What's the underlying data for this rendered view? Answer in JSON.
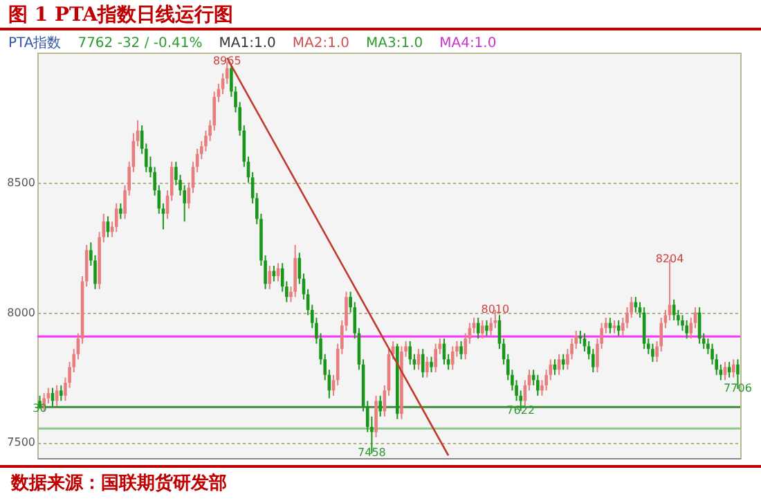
{
  "chart_data": {
    "type": "candlestick",
    "title": "图 1  PTA指数日线运行图",
    "annotations": [
      "PTA指数",
      "7762  -32 / -0.41%",
      "MA1:1.0",
      "MA2:1.0",
      "MA3:1.0",
      "MA4:1.0",
      "数据来源：国联期货研发部",
      {
        "text": "8965",
        "y": 8965
      },
      {
        "text": "7458",
        "y": 7458
      },
      {
        "text": "8010",
        "y": 8010
      },
      {
        "text": "7622",
        "y": 7622
      },
      {
        "text": "8204",
        "y": 8204
      },
      {
        "text": "7706",
        "y": 7706
      },
      {
        "text": "30",
        "y": 7630
      }
    ],
    "categories": [
      null,
      null,
      null,
      null,
      null,
      null,
      null,
      null,
      null,
      null,
      null,
      null,
      null,
      null,
      null,
      null,
      null,
      null,
      null,
      null,
      null,
      null,
      null,
      null,
      null,
      null,
      null,
      null,
      null,
      null,
      null,
      null,
      null,
      null,
      null,
      null,
      null,
      null,
      null,
      null,
      null,
      null,
      null,
      null,
      null,
      null,
      null,
      null,
      null,
      null,
      null,
      null,
      null,
      null,
      null,
      null,
      null,
      null,
      null,
      null,
      null,
      null,
      null,
      null,
      null,
      null,
      null,
      null,
      null,
      null,
      null,
      null,
      null,
      null,
      null,
      null,
      null,
      null,
      null,
      null,
      null,
      null,
      null,
      null,
      null,
      null,
      null,
      null,
      null,
      null,
      null,
      null,
      null,
      null,
      null,
      null,
      null,
      null,
      null,
      null,
      null,
      null,
      null,
      null,
      null,
      null,
      null,
      null,
      null,
      null,
      null,
      null,
      null,
      null,
      null,
      null,
      null,
      null,
      null,
      null,
      null,
      null,
      null,
      null,
      null,
      null,
      null,
      null,
      null,
      null,
      null,
      null,
      null,
      null,
      null,
      null,
      null,
      null,
      null,
      null,
      null,
      null,
      null,
      null,
      null,
      null,
      null,
      null,
      null,
      null,
      null,
      null,
      null,
      null,
      null,
      null,
      null,
      null,
      null,
      null,
      null,
      null,
      null,
      null,
      null
    ],
    "ohlc": [
      [
        7660,
        7680,
        7630,
        7640
      ],
      [
        7640,
        7690,
        7620,
        7670
      ],
      [
        7670,
        7710,
        7650,
        7690
      ],
      [
        7690,
        7710,
        7640,
        7660
      ],
      [
        7660,
        7720,
        7640,
        7700
      ],
      [
        7700,
        7720,
        7660,
        7680
      ],
      [
        7680,
        7750,
        7660,
        7730
      ],
      [
        7730,
        7810,
        7710,
        7790
      ],
      [
        7790,
        7860,
        7770,
        7840
      ],
      [
        7840,
        7920,
        7820,
        7900
      ],
      [
        7900,
        8140,
        7880,
        8120
      ],
      [
        8120,
        8260,
        8100,
        8240
      ],
      [
        8240,
        8270,
        8180,
        8200
      ],
      [
        8200,
        8220,
        8090,
        8110
      ],
      [
        8110,
        8310,
        8090,
        8290
      ],
      [
        8290,
        8380,
        8270,
        8350
      ],
      [
        8350,
        8370,
        8290,
        8310
      ],
      [
        8310,
        8350,
        8290,
        8330
      ],
      [
        8330,
        8420,
        8310,
        8400
      ],
      [
        8400,
        8420,
        8360,
        8380
      ],
      [
        8380,
        8490,
        8360,
        8470
      ],
      [
        8470,
        8580,
        8450,
        8560
      ],
      [
        8560,
        8690,
        8540,
        8660
      ],
      [
        8660,
        8740,
        8640,
        8700
      ],
      [
        8700,
        8720,
        8610,
        8630
      ],
      [
        8630,
        8650,
        8540,
        8560
      ],
      [
        8560,
        8600,
        8520,
        8540
      ],
      [
        8540,
        8560,
        8450,
        8470
      ],
      [
        8470,
        8490,
        8380,
        8400
      ],
      [
        8400,
        8420,
        8320,
        8380
      ],
      [
        8380,
        8470,
        8360,
        8450
      ],
      [
        8450,
        8580,
        8430,
        8560
      ],
      [
        8560,
        8580,
        8490,
        8510
      ],
      [
        8510,
        8530,
        8450,
        8470
      ],
      [
        8470,
        8490,
        8350,
        8420
      ],
      [
        8420,
        8500,
        8400,
        8480
      ],
      [
        8480,
        8580,
        8460,
        8560
      ],
      [
        8560,
        8630,
        8540,
        8610
      ],
      [
        8610,
        8660,
        8590,
        8640
      ],
      [
        8640,
        8700,
        8620,
        8680
      ],
      [
        8680,
        8740,
        8660,
        8720
      ],
      [
        8720,
        8850,
        8700,
        8830
      ],
      [
        8830,
        8880,
        8810,
        8860
      ],
      [
        8860,
        8920,
        8840,
        8900
      ],
      [
        8900,
        8965,
        8880,
        8940
      ],
      [
        8940,
        8950,
        8830,
        8850
      ],
      [
        8850,
        8870,
        8770,
        8790
      ],
      [
        8790,
        8810,
        8680,
        8700
      ],
      [
        8700,
        8720,
        8560,
        8580
      ],
      [
        8580,
        8600,
        8500,
        8520
      ],
      [
        8520,
        8540,
        8420,
        8440
      ],
      [
        8440,
        8460,
        8340,
        8360
      ],
      [
        8360,
        8380,
        8180,
        8200
      ],
      [
        8200,
        8220,
        8090,
        8110
      ],
      [
        8110,
        8180,
        8090,
        8160
      ],
      [
        8160,
        8180,
        8120,
        8140
      ],
      [
        8140,
        8190,
        8120,
        8170
      ],
      [
        8170,
        8190,
        8080,
        8100
      ],
      [
        8100,
        8120,
        8040,
        8060
      ],
      [
        8060,
        8100,
        8040,
        8080
      ],
      [
        8080,
        8260,
        8060,
        8210
      ],
      [
        8210,
        8230,
        8110,
        8130
      ],
      [
        8130,
        8150,
        8050,
        8070
      ],
      [
        8070,
        8090,
        7990,
        8010
      ],
      [
        8010,
        8030,
        7940,
        7960
      ],
      [
        7960,
        7980,
        7880,
        7900
      ],
      [
        7900,
        7920,
        7800,
        7820
      ],
      [
        7820,
        7840,
        7740,
        7760
      ],
      [
        7760,
        7780,
        7670,
        7700
      ],
      [
        7700,
        7760,
        7680,
        7740
      ],
      [
        7740,
        7880,
        7720,
        7860
      ],
      [
        7860,
        7970,
        7840,
        7950
      ],
      [
        7950,
        8080,
        7930,
        8060
      ],
      [
        8060,
        8080,
        8000,
        8020
      ],
      [
        8020,
        8040,
        7900,
        7920
      ],
      [
        7920,
        7940,
        7780,
        7800
      ],
      [
        7800,
        7820,
        7620,
        7640
      ],
      [
        7640,
        7660,
        7540,
        7560
      ],
      [
        7560,
        7600,
        7458,
        7540
      ],
      [
        7540,
        7680,
        7520,
        7660
      ],
      [
        7660,
        7680,
        7600,
        7620
      ],
      [
        7620,
        7720,
        7600,
        7700
      ],
      [
        7700,
        7860,
        7680,
        7840
      ],
      [
        7840,
        7890,
        7820,
        7870
      ],
      [
        7870,
        7880,
        7590,
        7610
      ],
      [
        7610,
        7870,
        7590,
        7850
      ],
      [
        7850,
        7890,
        7830,
        7870
      ],
      [
        7870,
        7890,
        7800,
        7820
      ],
      [
        7820,
        7840,
        7780,
        7800
      ],
      [
        7800,
        7860,
        7780,
        7840
      ],
      [
        7840,
        7860,
        7750,
        7770
      ],
      [
        7770,
        7830,
        7750,
        7810
      ],
      [
        7810,
        7830,
        7770,
        7790
      ],
      [
        7790,
        7880,
        7770,
        7860
      ],
      [
        7860,
        7900,
        7840,
        7880
      ],
      [
        7880,
        7900,
        7800,
        7820
      ],
      [
        7820,
        7840,
        7780,
        7800
      ],
      [
        7800,
        7870,
        7780,
        7850
      ],
      [
        7850,
        7890,
        7830,
        7870
      ],
      [
        7870,
        7890,
        7820,
        7840
      ],
      [
        7840,
        7920,
        7820,
        7900
      ],
      [
        7900,
        7960,
        7880,
        7940
      ],
      [
        7940,
        7980,
        7920,
        7960
      ],
      [
        7960,
        7980,
        7900,
        7920
      ],
      [
        7920,
        7970,
        7900,
        7950
      ],
      [
        7950,
        7970,
        7910,
        7930
      ],
      [
        7930,
        7980,
        7910,
        7960
      ],
      [
        7960,
        8010,
        7940,
        7970
      ],
      [
        7970,
        7990,
        7860,
        7880
      ],
      [
        7880,
        7900,
        7800,
        7820
      ],
      [
        7820,
        7840,
        7740,
        7760
      ],
      [
        7760,
        7780,
        7700,
        7720
      ],
      [
        7720,
        7740,
        7660,
        7680
      ],
      [
        7680,
        7700,
        7622,
        7660
      ],
      [
        7660,
        7740,
        7640,
        7720
      ],
      [
        7720,
        7780,
        7700,
        7760
      ],
      [
        7760,
        7780,
        7720,
        7740
      ],
      [
        7740,
        7760,
        7680,
        7700
      ],
      [
        7700,
        7740,
        7680,
        7720
      ],
      [
        7720,
        7780,
        7700,
        7760
      ],
      [
        7760,
        7820,
        7740,
        7800
      ],
      [
        7800,
        7820,
        7760,
        7780
      ],
      [
        7780,
        7840,
        7760,
        7820
      ],
      [
        7820,
        7840,
        7780,
        7800
      ],
      [
        7800,
        7860,
        7780,
        7840
      ],
      [
        7840,
        7900,
        7820,
        7880
      ],
      [
        7880,
        7930,
        7860,
        7910
      ],
      [
        7910,
        7930,
        7880,
        7900
      ],
      [
        7900,
        7920,
        7850,
        7870
      ],
      [
        7870,
        7890,
        7820,
        7840
      ],
      [
        7840,
        7860,
        7770,
        7790
      ],
      [
        7790,
        7900,
        7770,
        7880
      ],
      [
        7880,
        7960,
        7860,
        7940
      ],
      [
        7940,
        7980,
        7920,
        7960
      ],
      [
        7960,
        7980,
        7920,
        7940
      ],
      [
        7940,
        7970,
        7920,
        7950
      ],
      [
        7950,
        7970,
        7910,
        7930
      ],
      [
        7930,
        7980,
        7910,
        7960
      ],
      [
        7960,
        8020,
        7940,
        8000
      ],
      [
        8000,
        8060,
        7980,
        8040
      ],
      [
        8040,
        8060,
        8000,
        8020
      ],
      [
        8020,
        8040,
        7980,
        8000
      ],
      [
        8000,
        8020,
        7860,
        7880
      ],
      [
        7880,
        7900,
        7840,
        7860
      ],
      [
        7860,
        7880,
        7810,
        7830
      ],
      [
        7830,
        7890,
        7810,
        7870
      ],
      [
        7870,
        7980,
        7850,
        7960
      ],
      [
        7960,
        8010,
        7940,
        7990
      ],
      [
        7990,
        8204,
        7970,
        8030
      ],
      [
        8030,
        8050,
        7970,
        7990
      ],
      [
        7990,
        8010,
        7950,
        7970
      ],
      [
        7970,
        7990,
        7930,
        7950
      ],
      [
        7950,
        7970,
        7900,
        7920
      ],
      [
        7920,
        7980,
        7900,
        7960
      ],
      [
        7960,
        8020,
        7940,
        8000
      ],
      [
        8000,
        8020,
        7880,
        7900
      ],
      [
        7900,
        7920,
        7860,
        7880
      ],
      [
        7880,
        7900,
        7840,
        7860
      ],
      [
        7860,
        7880,
        7800,
        7820
      ],
      [
        7820,
        7840,
        7760,
        7780
      ],
      [
        7780,
        7800,
        7740,
        7760
      ],
      [
        7760,
        7810,
        7740,
        7790
      ],
      [
        7790,
        7810,
        7750,
        7770
      ],
      [
        7770,
        7820,
        7750,
        7800
      ],
      [
        7800,
        7820,
        7706,
        7762
      ]
    ],
    "colors": [
      "#1a961a",
      "#e87d7d",
      "#e87d7d",
      "#1a961a",
      "#e87d7d",
      "#1a961a",
      "#e87d7d",
      "#e87d7d",
      "#e87d7d",
      "#e87d7d",
      "#e87d7d",
      "#e87d7d",
      "#1a961a",
      "#1a961a",
      "#e87d7d",
      "#e87d7d",
      "#1a961a",
      "#e87d7d",
      "#e87d7d",
      "#1a961a",
      "#e87d7d",
      "#e87d7d",
      "#e87d7d",
      "#e87d7d",
      "#1a961a",
      "#1a961a",
      "#1a961a",
      "#1a961a",
      "#1a961a",
      "#1a961a",
      "#e87d7d",
      "#e87d7d",
      "#1a961a",
      "#1a961a",
      "#1a961a",
      "#e87d7d",
      "#e87d7d",
      "#e87d7d",
      "#e87d7d",
      "#e87d7d",
      "#e87d7d",
      "#e87d7d",
      "#e87d7d",
      "#e87d7d",
      "#e87d7d",
      "#1a961a",
      "#1a961a",
      "#1a961a",
      "#1a961a",
      "#1a961a",
      "#1a961a",
      "#1a961a",
      "#1a961a",
      "#1a961a",
      "#e87d7d",
      "#1a961a",
      "#e87d7d",
      "#1a961a",
      "#1a961a",
      "#e87d7d",
      "#e87d7d",
      "#1a961a",
      "#1a961a",
      "#1a961a",
      "#1a961a",
      "#1a961a",
      "#1a961a",
      "#1a961a",
      "#1a961a",
      "#e87d7d",
      "#e87d7d",
      "#e87d7d",
      "#e87d7d",
      "#1a961a",
      "#1a961a",
      "#1a961a",
      "#1a961a",
      "#1a961a",
      "#1a961a",
      "#e87d7d",
      "#1a961a",
      "#e87d7d",
      "#e87d7d",
      "#e87d7d",
      "#1a961a",
      "#e87d7d",
      "#e87d7d",
      "#1a961a",
      "#1a961a",
      "#e87d7d",
      "#1a961a",
      "#e87d7d",
      "#1a961a",
      "#e87d7d",
      "#e87d7d",
      "#1a961a",
      "#1a961a",
      "#e87d7d",
      "#e87d7d",
      "#1a961a",
      "#e87d7d",
      "#e87d7d",
      "#e87d7d",
      "#1a961a",
      "#e87d7d",
      "#1a961a",
      "#e87d7d",
      "#e87d7d",
      "#1a961a",
      "#1a961a",
      "#1a961a",
      "#1a961a",
      "#1a961a",
      "#1a961a",
      "#e87d7d",
      "#e87d7d",
      "#1a961a",
      "#1a961a",
      "#e87d7d",
      "#e87d7d",
      "#e87d7d",
      "#1a961a",
      "#e87d7d",
      "#1a961a",
      "#e87d7d",
      "#e87d7d",
      "#e87d7d",
      "#1a961a",
      "#1a961a",
      "#1a961a",
      "#1a961a",
      "#e87d7d",
      "#e87d7d",
      "#e87d7d",
      "#1a961a",
      "#e87d7d",
      "#1a961a",
      "#e87d7d",
      "#e87d7d",
      "#e87d7d",
      "#1a961a",
      "#1a961a",
      "#1a961a",
      "#1a961a",
      "#1a961a",
      "#e87d7d",
      "#e87d7d",
      "#e87d7d",
      "#e87d7d",
      "#1a961a",
      "#1a961a",
      "#1a961a",
      "#1a961a",
      "#e87d7d",
      "#e87d7d",
      "#1a961a",
      "#1a961a",
      "#1a961a",
      "#1a961a",
      "#1a961a",
      "#1a961a",
      "#e87d7d",
      "#1a961a",
      "#e87d7d",
      "#1a961a"
    ],
    "series": [
      {
        "type": "line",
        "color": "#c0392b",
        "values": [
          null,
          null,
          null,
          null,
          null,
          null,
          null,
          null,
          null,
          null,
          null,
          null,
          null,
          null,
          null,
          null,
          null,
          null,
          null,
          null,
          null,
          null,
          null,
          null,
          null,
          null,
          null,
          null,
          null,
          null,
          null,
          null,
          null,
          null,
          null,
          null,
          null,
          null,
          null,
          null,
          null,
          null,
          null,
          null,
          8980,
          null,
          null,
          null,
          null,
          null,
          null,
          null,
          null,
          null,
          null,
          null,
          null,
          null,
          null,
          null,
          null,
          null,
          null,
          null,
          null,
          null,
          null,
          null,
          null,
          null,
          null,
          null,
          null,
          null,
          null,
          null,
          null,
          null,
          null,
          null,
          null,
          null,
          null,
          null,
          null,
          null,
          null,
          null,
          null,
          null,
          null,
          null,
          null,
          null,
          null,
          null,
          7450,
          null,
          null,
          null,
          null,
          null,
          null,
          null,
          null,
          null,
          null,
          null,
          null,
          null,
          null,
          null,
          null,
          null,
          null,
          null,
          null,
          null,
          null,
          null,
          null,
          null,
          null,
          null,
          null,
          null,
          null,
          null,
          null,
          null,
          null,
          null,
          null,
          null,
          null,
          null,
          null,
          null,
          null,
          null,
          null,
          null,
          null,
          null,
          null,
          null,
          null,
          null,
          null,
          null,
          null,
          null,
          null,
          null,
          null,
          null,
          null,
          null,
          null,
          null,
          null,
          null,
          null,
          null,
          null
        ]
      }
    ],
    "ref_lines": [
      {
        "axis": "y",
        "value": 7908,
        "color": "#ff33ff"
      },
      {
        "axis": "y",
        "value": 7636,
        "color": "#3c8c3c"
      },
      {
        "axis": "y",
        "value": 7554,
        "color": "#8cc88c"
      }
    ],
    "ylim": [
      7440,
      9000
    ],
    "yticks": [
      7500,
      8000,
      8500
    ],
    "grid": "y",
    "tick_labels": "y"
  }
}
